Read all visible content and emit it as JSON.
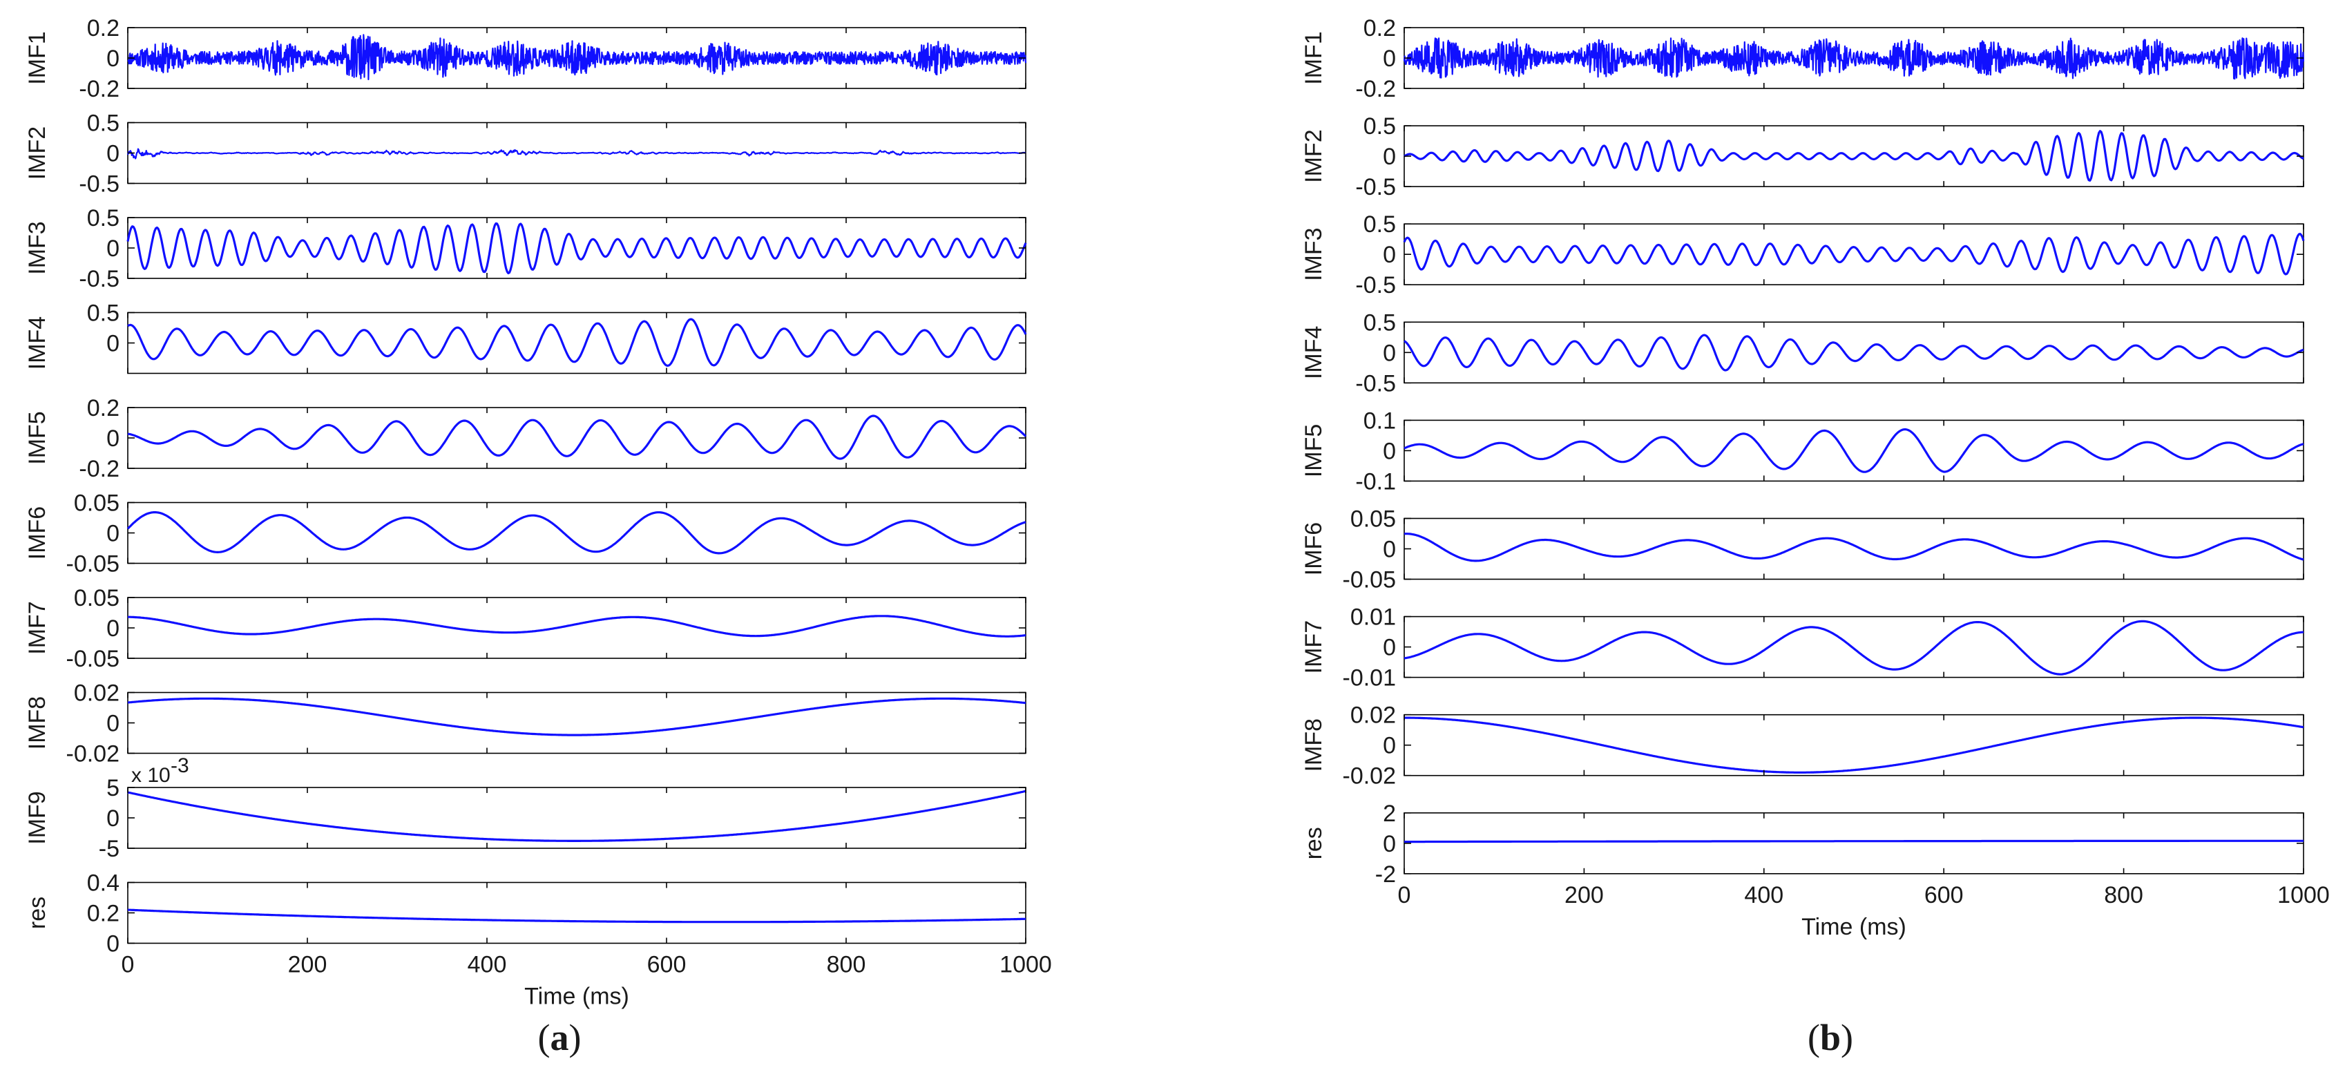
{
  "figure": {
    "colors": {
      "line": "#1010ff",
      "axis": "#000000",
      "text": "#1a1a1a"
    }
  },
  "chart_data": [
    {
      "type": "line",
      "caption": "(a)",
      "caption_letter": "a",
      "xlabel": "Time (ms)",
      "xlim": [
        0,
        1000
      ],
      "xticks": [
        0,
        200,
        400,
        600,
        800,
        1000
      ],
      "xtick_labels": [
        "0",
        "200",
        "400",
        "600",
        "800",
        "1000"
      ],
      "subplots": [
        {
          "name": "IMF1",
          "ylim": [
            -0.2,
            0.2
          ],
          "yticks": [
            0.2,
            0,
            -0.2
          ],
          "ytick_labels": [
            "0.2",
            "0",
            "-0.2"
          ],
          "signal": {
            "kind": "noise",
            "amplitude": 0.075,
            "bursts": [
              [
                40,
                0.8
              ],
              [
                170,
                1.0
              ],
              [
                260,
                1.6
              ],
              [
                350,
                1.2
              ],
              [
                430,
                1.1
              ],
              [
                500,
                1.0
              ],
              [
                660,
                0.9
              ],
              [
                900,
                1.0
              ]
            ],
            "seed": 11
          }
        },
        {
          "name": "IMF2",
          "ylim": [
            -0.5,
            0.5
          ],
          "yticks": [
            0.5,
            0,
            -0.5
          ],
          "ytick_labels": [
            "0.5",
            "0",
            "-0.5"
          ],
          "signal": {
            "kind": "noise",
            "amplitude": 0.035,
            "bursts": [
              [
                10,
                6.0
              ],
              [
                210,
                1.5
              ],
              [
                290,
                2.0
              ],
              [
                430,
                3.0
              ],
              [
                560,
                1.5
              ],
              [
                700,
                1.8
              ],
              [
                850,
                1.4
              ]
            ],
            "seed": 23,
            "smooth": 3
          }
        },
        {
          "name": "IMF3",
          "ylim": [
            -0.5,
            0.5
          ],
          "yticks": [
            0.5,
            0,
            -0.5
          ],
          "ytick_labels": [
            "0.5",
            "0",
            "-0.5"
          ],
          "signal": {
            "kind": "sine",
            "period": 27,
            "phase": 0.3,
            "envelope": [
              [
                0,
                0.36
              ],
              [
                80,
                0.3
              ],
              [
                130,
                0.28
              ],
              [
                190,
                0.12
              ],
              [
                280,
                0.25
              ],
              [
                330,
                0.35
              ],
              [
                430,
                0.42
              ],
              [
                470,
                0.3
              ],
              [
                520,
                0.14
              ],
              [
                600,
                0.16
              ],
              [
                700,
                0.18
              ],
              [
                820,
                0.14
              ],
              [
                1000,
                0.16
              ]
            ]
          }
        },
        {
          "name": "IMF4",
          "ylim": [
            -0.5,
            0.5
          ],
          "yticks": [
            0.5,
            0
          ],
          "ytick_labels": [
            "0.5",
            "0"
          ],
          "signal": {
            "kind": "sine",
            "period": 52,
            "phase": 1.2,
            "envelope": [
              [
                0,
                0.3
              ],
              [
                100,
                0.18
              ],
              [
                200,
                0.2
              ],
              [
                300,
                0.22
              ],
              [
                420,
                0.28
              ],
              [
                520,
                0.32
              ],
              [
                640,
                0.4
              ],
              [
                700,
                0.25
              ],
              [
                850,
                0.18
              ],
              [
                1000,
                0.3
              ]
            ]
          }
        },
        {
          "name": "IMF5",
          "ylim": [
            -0.2,
            0.2
          ],
          "yticks": [
            0.2,
            0,
            -0.2
          ],
          "ytick_labels": [
            "0.2",
            "0",
            "-0.2"
          ],
          "signal": {
            "kind": "sine",
            "period": 76,
            "phase": 2.0,
            "envelope": [
              [
                0,
                0.03
              ],
              [
                150,
                0.06
              ],
              [
                300,
                0.11
              ],
              [
                500,
                0.12
              ],
              [
                700,
                0.09
              ],
              [
                820,
                0.15
              ],
              [
                1000,
                0.07
              ]
            ]
          }
        },
        {
          "name": "IMF6",
          "ylim": [
            -0.05,
            0.05
          ],
          "yticks": [
            0.05,
            0,
            -0.05
          ],
          "ytick_labels": [
            "0.05",
            "0",
            "-0.05"
          ],
          "signal": {
            "kind": "sine",
            "period": 140,
            "phase": 0.2,
            "envelope": [
              [
                0,
                0.035
              ],
              [
                300,
                0.025
              ],
              [
                500,
                0.03
              ],
              [
                640,
                0.036
              ],
              [
                760,
                0.02
              ],
              [
                1000,
                0.02
              ]
            ]
          }
        },
        {
          "name": "IMF7",
          "ylim": [
            -0.05,
            0.05
          ],
          "yticks": [
            0.05,
            0,
            -0.05
          ],
          "ytick_labels": [
            "0.05",
            "0",
            "-0.05"
          ],
          "signal": {
            "kind": "sine",
            "period": 280,
            "phase": 1.6,
            "envelope": [
              [
                0,
                0.015
              ],
              [
                400,
                0.01
              ],
              [
                600,
                0.016
              ],
              [
                1000,
                0.017
              ]
            ],
            "offset": 0.003
          }
        },
        {
          "name": "IMF8",
          "ylim": [
            -0.02,
            0.02
          ],
          "yticks": [
            0.02,
            0,
            -0.02
          ],
          "ytick_labels": [
            "0.02",
            "0",
            "-0.02"
          ],
          "signal": {
            "kind": "sine",
            "period": 820,
            "phase": 0.9,
            "envelope": [
              [
                0,
                0.012
              ],
              [
                1000,
                0.012
              ]
            ],
            "offset": 0.004
          }
        },
        {
          "name": "IMF9",
          "ylim": [
            -5,
            5
          ],
          "yticks": [
            5,
            0,
            -5
          ],
          "ytick_labels": [
            "5",
            "0",
            "-5"
          ],
          "exponent_label": "x 10",
          "exponent_power": "-3",
          "signal": {
            "kind": "parabola",
            "points": [
              [
                0,
                4.2
              ],
              [
                420,
                -3.6
              ],
              [
                1000,
                4.4
              ]
            ]
          }
        },
        {
          "name": "res",
          "ylim": [
            0,
            0.4
          ],
          "yticks": [
            0.4,
            0.2,
            0
          ],
          "ytick_labels": [
            "0.4",
            "0.2",
            "0"
          ],
          "signal": {
            "kind": "parabola",
            "points": [
              [
                0,
                0.22
              ],
              [
                700,
                0.14
              ],
              [
                1000,
                0.16
              ]
            ]
          }
        }
      ]
    },
    {
      "type": "line",
      "caption": "(b)",
      "caption_letter": "b",
      "xlabel": "Time (ms)",
      "xlim": [
        0,
        1000
      ],
      "xticks": [
        0,
        200,
        400,
        600,
        800,
        1000
      ],
      "xtick_labels": [
        "0",
        "200",
        "400",
        "600",
        "800",
        "1000"
      ],
      "subplots": [
        {
          "name": "IMF1",
          "ylim": [
            -0.2,
            0.2
          ],
          "yticks": [
            0.2,
            0,
            -0.2
          ],
          "ytick_labels": [
            "0.2",
            "0",
            "-0.2"
          ],
          "signal": {
            "kind": "noise",
            "amplitude": 0.07,
            "bursts": [
              [
                40,
                1.6
              ],
              [
                120,
                1.4
              ],
              [
                220,
                1.3
              ],
              [
                300,
                1.5
              ],
              [
                380,
                1.2
              ],
              [
                470,
                1.4
              ],
              [
                560,
                1.3
              ],
              [
                650,
                1.2
              ],
              [
                740,
                1.4
              ],
              [
                830,
                1.3
              ],
              [
                930,
                1.6
              ],
              [
                980,
                1.5
              ]
            ],
            "seed": 37
          }
        },
        {
          "name": "IMF2",
          "ylim": [
            -0.5,
            0.5
          ],
          "yticks": [
            0.5,
            0,
            -0.5
          ],
          "ytick_labels": [
            "0.5",
            "0",
            "-0.5"
          ],
          "signal": {
            "kind": "sine",
            "period": 24,
            "phase": 0.0,
            "envelope": [
              [
                0,
                0.03
              ],
              [
                80,
                0.1
              ],
              [
                150,
                0.05
              ],
              [
                250,
                0.22
              ],
              [
                300,
                0.26
              ],
              [
                360,
                0.05
              ],
              [
                600,
                0.05
              ],
              [
                620,
                0.14
              ],
              [
                680,
                0.05
              ],
              [
                710,
                0.3
              ],
              [
                770,
                0.42
              ],
              [
                840,
                0.32
              ],
              [
                880,
                0.08
              ],
              [
                1000,
                0.05
              ]
            ]
          }
        },
        {
          "name": "IMF3",
          "ylim": [
            -0.5,
            0.5
          ],
          "yticks": [
            0.5,
            0,
            -0.5
          ],
          "ytick_labels": [
            "0.5",
            "0",
            "-0.5"
          ],
          "signal": {
            "kind": "sine",
            "period": 31,
            "phase": 0.8,
            "envelope": [
              [
                0,
                0.28
              ],
              [
                100,
                0.12
              ],
              [
                200,
                0.14
              ],
              [
                400,
                0.18
              ],
              [
                500,
                0.12
              ],
              [
                600,
                0.1
              ],
              [
                740,
                0.3
              ],
              [
                800,
                0.14
              ],
              [
                900,
                0.28
              ],
              [
                1000,
                0.34
              ]
            ]
          }
        },
        {
          "name": "IMF4",
          "ylim": [
            -0.5,
            0.5
          ],
          "yticks": [
            0.5,
            0,
            -0.5
          ],
          "ytick_labels": [
            "0.5",
            "0",
            "-0.5"
          ],
          "signal": {
            "kind": "sine",
            "period": 48,
            "phase": 1.9,
            "envelope": [
              [
                0,
                0.2
              ],
              [
                50,
                0.25
              ],
              [
                200,
                0.18
              ],
              [
                350,
                0.3
              ],
              [
                500,
                0.14
              ],
              [
                650,
                0.1
              ],
              [
                800,
                0.12
              ],
              [
                1000,
                0.06
              ]
            ]
          }
        },
        {
          "name": "IMF5",
          "ylim": [
            -0.1,
            0.1
          ],
          "yticks": [
            0.1,
            0,
            -0.1
          ],
          "ytick_labels": [
            "0.1",
            "0",
            "-0.1"
          ],
          "signal": {
            "kind": "sine",
            "period": 90,
            "phase": 0.4,
            "envelope": [
              [
                0,
                0.02
              ],
              [
                200,
                0.03
              ],
              [
                320,
                0.05
              ],
              [
                420,
                0.06
              ],
              [
                500,
                0.07
              ],
              [
                600,
                0.07
              ],
              [
                700,
                0.03
              ],
              [
                1000,
                0.025
              ]
            ]
          }
        },
        {
          "name": "IMF6",
          "ylim": [
            -0.05,
            0.05
          ],
          "yticks": [
            0.05,
            0,
            -0.05
          ],
          "ytick_labels": [
            "0.05",
            "0",
            "-0.05"
          ],
          "signal": {
            "kind": "sine",
            "period": 155,
            "phase": 1.4,
            "envelope": [
              [
                0,
                0.025
              ],
              [
                200,
                0.012
              ],
              [
                500,
                0.018
              ],
              [
                800,
                0.012
              ],
              [
                1000,
                0.02
              ]
            ]
          }
        },
        {
          "name": "IMF7",
          "ylim": [
            -0.01,
            0.01
          ],
          "yticks": [
            0.01,
            0,
            -0.01
          ],
          "ytick_labels": [
            "0.01",
            "0",
            "-0.01"
          ],
          "signal": {
            "kind": "sine",
            "period": 185,
            "phase": -1.2,
            "envelope": [
              [
                0,
                0.004
              ],
              [
                300,
                0.005
              ],
              [
                500,
                0.007
              ],
              [
                730,
                0.009
              ],
              [
                900,
                0.008
              ],
              [
                1000,
                0.005
              ]
            ]
          }
        },
        {
          "name": "IMF8",
          "ylim": [
            -0.02,
            0.02
          ],
          "yticks": [
            0.02,
            0,
            -0.02
          ],
          "ytick_labels": [
            "0.02",
            "0",
            "-0.02"
          ],
          "signal": {
            "kind": "sine",
            "period": 880,
            "phase": 1.57,
            "envelope": [
              [
                0,
                0.018
              ],
              [
                1000,
                0.018
              ]
            ]
          }
        },
        {
          "name": "res",
          "ylim": [
            -2,
            2
          ],
          "yticks": [
            2,
            0,
            -2
          ],
          "ytick_labels": [
            "2",
            "0",
            "-2"
          ],
          "signal": {
            "kind": "parabola",
            "points": [
              [
                0,
                0.1
              ],
              [
                500,
                0.14
              ],
              [
                1000,
                0.16
              ]
            ]
          }
        }
      ]
    }
  ]
}
